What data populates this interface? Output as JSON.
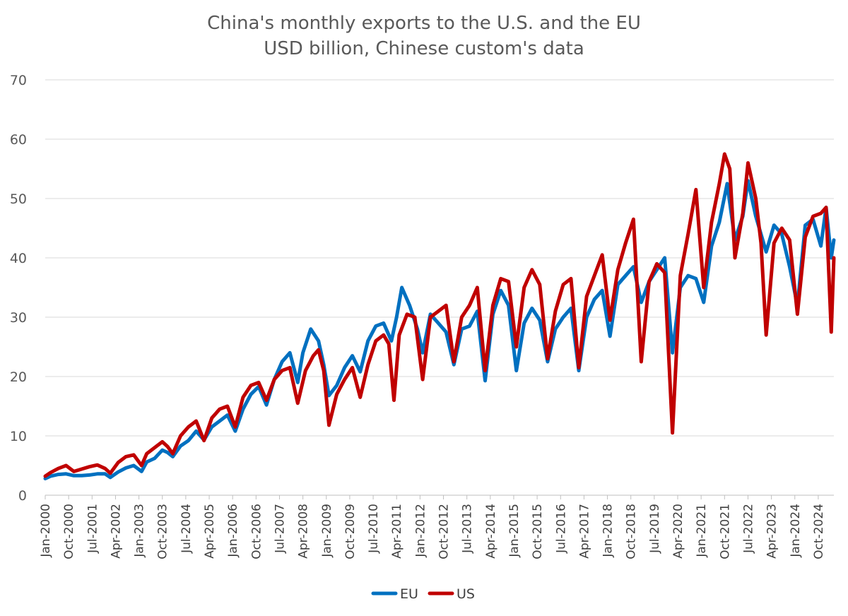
{
  "chart_data": {
    "type": "line",
    "title": "China's monthly exports to the U.S. and the EU",
    "subtitle": "USD billion, Chinese custom's data",
    "xlabel": "",
    "ylabel": "",
    "ylim": [
      0,
      70
    ],
    "yticks": [
      "0",
      "10",
      "20",
      "30",
      "40",
      "50",
      "60",
      "70"
    ],
    "grid": true,
    "legend": "bottom",
    "x_start": "Jan-2000",
    "x_end": "Apr-2025",
    "x_tick_labels": [
      "Jan-2000",
      "Oct-2000",
      "Jul-2001",
      "Apr-2002",
      "Jan-2003",
      "Oct-2003",
      "Jul-2004",
      "Apr-2005",
      "Jan-2006",
      "Oct-2006",
      "Jul-2007",
      "Apr-2008",
      "Jan-2009",
      "Oct-2009",
      "Jul-2010",
      "Apr-2011",
      "Jan-2012",
      "Oct-2012",
      "Jul-2013",
      "Apr-2014",
      "Jan-2015",
      "Oct-2015",
      "Jul-2016",
      "Apr-2017",
      "Jan-2018",
      "Oct-2018",
      "Jul-2019",
      "Apr-2020",
      "Jan-2021",
      "Oct-2021",
      "Jul-2022",
      "Apr-2023",
      "Jan-2024",
      "Oct-2024"
    ],
    "series": [
      {
        "name": "EU",
        "color": "#0070C0",
        "points": [
          [
            "Jan-2000",
            2.8
          ],
          [
            "Mar-2000",
            3.2
          ],
          [
            "Jun-2000",
            3.5
          ],
          [
            "Sep-2000",
            3.6
          ],
          [
            "Dec-2000",
            3.3
          ],
          [
            "Mar-2001",
            3.3
          ],
          [
            "Jun-2001",
            3.4
          ],
          [
            "Sep-2001",
            3.6
          ],
          [
            "Dec-2001",
            3.6
          ],
          [
            "Feb-2002",
            3.0
          ],
          [
            "May-2002",
            3.9
          ],
          [
            "Aug-2002",
            4.6
          ],
          [
            "Nov-2002",
            5.0
          ],
          [
            "Feb-2003",
            4.0
          ],
          [
            "Apr-2003",
            5.6
          ],
          [
            "Jul-2003",
            6.2
          ],
          [
            "Oct-2003",
            7.6
          ],
          [
            "Dec-2003",
            7.2
          ],
          [
            "Feb-2004",
            6.5
          ],
          [
            "May-2004",
            8.3
          ],
          [
            "Aug-2004",
            9.2
          ],
          [
            "Nov-2004",
            10.8
          ],
          [
            "Feb-2005",
            9.3
          ],
          [
            "May-2005",
            11.5
          ],
          [
            "Aug-2005",
            12.5
          ],
          [
            "Nov-2005",
            13.5
          ],
          [
            "Feb-2006",
            10.8
          ],
          [
            "May-2006",
            14.5
          ],
          [
            "Aug-2006",
            17.0
          ],
          [
            "Nov-2006",
            18.3
          ],
          [
            "Feb-2007",
            15.2
          ],
          [
            "May-2007",
            19.5
          ],
          [
            "Aug-2007",
            22.5
          ],
          [
            "Nov-2007",
            24.0
          ],
          [
            "Feb-2008",
            19.0
          ],
          [
            "Apr-2008",
            24.0
          ],
          [
            "Jul-2008",
            28.0
          ],
          [
            "Oct-2008",
            26.0
          ],
          [
            "Dec-2008",
            22.0
          ],
          [
            "Feb-2009",
            16.8
          ],
          [
            "May-2009",
            18.5
          ],
          [
            "Aug-2009",
            21.5
          ],
          [
            "Nov-2009",
            23.5
          ],
          [
            "Feb-2010",
            20.8
          ],
          [
            "May-2010",
            26.0
          ],
          [
            "Aug-2010",
            28.5
          ],
          [
            "Nov-2010",
            29.0
          ],
          [
            "Feb-2011",
            26.0
          ],
          [
            "Apr-2011",
            30.0
          ],
          [
            "Jun-2011",
            35.0
          ],
          [
            "Sep-2011",
            32.0
          ],
          [
            "Dec-2011",
            28.0
          ],
          [
            "Feb-2012",
            24.0
          ],
          [
            "May-2012",
            30.5
          ],
          [
            "Aug-2012",
            29.0
          ],
          [
            "Nov-2012",
            27.5
          ],
          [
            "Feb-2013",
            22.0
          ],
          [
            "May-2013",
            28.0
          ],
          [
            "Aug-2013",
            28.5
          ],
          [
            "Nov-2013",
            31.0
          ],
          [
            "Feb-2014",
            19.3
          ],
          [
            "May-2014",
            30.5
          ],
          [
            "Aug-2014",
            34.5
          ],
          [
            "Nov-2014",
            32.0
          ],
          [
            "Feb-2015",
            21.0
          ],
          [
            "May-2015",
            29.0
          ],
          [
            "Aug-2015",
            31.5
          ],
          [
            "Nov-2015",
            29.5
          ],
          [
            "Feb-2016",
            22.5
          ],
          [
            "May-2016",
            28.0
          ],
          [
            "Aug-2016",
            30.0
          ],
          [
            "Nov-2016",
            31.5
          ],
          [
            "Feb-2017",
            21.0
          ],
          [
            "May-2017",
            30.0
          ],
          [
            "Aug-2017",
            33.0
          ],
          [
            "Nov-2017",
            34.5
          ],
          [
            "Feb-2018",
            26.8
          ],
          [
            "May-2018",
            35.5
          ],
          [
            "Aug-2018",
            37.0
          ],
          [
            "Nov-2018",
            38.5
          ],
          [
            "Feb-2019",
            32.5
          ],
          [
            "May-2019",
            36.0
          ],
          [
            "Aug-2019",
            38.0
          ],
          [
            "Nov-2019",
            40.0
          ],
          [
            "Feb-2020",
            24.0
          ],
          [
            "May-2020",
            35.0
          ],
          [
            "Aug-2020",
            37.0
          ],
          [
            "Nov-2020",
            36.5
          ],
          [
            "Feb-2021",
            32.5
          ],
          [
            "May-2021",
            42.0
          ],
          [
            "Aug-2021",
            46.0
          ],
          [
            "Nov-2021",
            52.5
          ],
          [
            "Feb-2022",
            43.0
          ],
          [
            "May-2022",
            47.0
          ],
          [
            "Jul-2022",
            53.0
          ],
          [
            "Oct-2022",
            47.0
          ],
          [
            "Dec-2022",
            44.0
          ],
          [
            "Feb-2023",
            41.0
          ],
          [
            "May-2023",
            45.5
          ],
          [
            "Aug-2023",
            44.0
          ],
          [
            "Nov-2023",
            38.5
          ],
          [
            "Feb-2024",
            32.0
          ],
          [
            "May-2024",
            45.5
          ],
          [
            "Aug-2024",
            46.5
          ],
          [
            "Nov-2024",
            42.0
          ],
          [
            "Jan-2025",
            48.5
          ],
          [
            "Mar-2025",
            40.0
          ],
          [
            "Apr-2025",
            43.0
          ]
        ]
      },
      {
        "name": "US",
        "color": "#C00000",
        "points": [
          [
            "Jan-2000",
            3.2
          ],
          [
            "Mar-2000",
            3.8
          ],
          [
            "Jun-2000",
            4.5
          ],
          [
            "Sep-2000",
            5.0
          ],
          [
            "Dec-2000",
            4.0
          ],
          [
            "Mar-2001",
            4.4
          ],
          [
            "Jun-2001",
            4.8
          ],
          [
            "Sep-2001",
            5.1
          ],
          [
            "Dec-2001",
            4.5
          ],
          [
            "Feb-2002",
            3.7
          ],
          [
            "May-2002",
            5.5
          ],
          [
            "Aug-2002",
            6.5
          ],
          [
            "Nov-2002",
            6.8
          ],
          [
            "Feb-2003",
            5.0
          ],
          [
            "Apr-2003",
            7.0
          ],
          [
            "Jul-2003",
            8.0
          ],
          [
            "Oct-2003",
            9.0
          ],
          [
            "Dec-2003",
            8.2
          ],
          [
            "Feb-2004",
            7.0
          ],
          [
            "May-2004",
            10.0
          ],
          [
            "Aug-2004",
            11.5
          ],
          [
            "Nov-2004",
            12.5
          ],
          [
            "Feb-2005",
            9.2
          ],
          [
            "May-2005",
            13.0
          ],
          [
            "Aug-2005",
            14.5
          ],
          [
            "Nov-2005",
            15.0
          ],
          [
            "Feb-2006",
            11.5
          ],
          [
            "May-2006",
            16.5
          ],
          [
            "Aug-2006",
            18.5
          ],
          [
            "Nov-2006",
            19.0
          ],
          [
            "Feb-2007",
            16.0
          ],
          [
            "May-2007",
            19.5
          ],
          [
            "Aug-2007",
            21.0
          ],
          [
            "Nov-2007",
            21.5
          ],
          [
            "Feb-2008",
            15.5
          ],
          [
            "May-2008",
            21.0
          ],
          [
            "Aug-2008",
            23.5
          ],
          [
            "Oct-2008",
            24.5
          ],
          [
            "Dec-2008",
            21.0
          ],
          [
            "Feb-2009",
            11.8
          ],
          [
            "May-2009",
            17.0
          ],
          [
            "Aug-2009",
            19.5
          ],
          [
            "Nov-2009",
            21.5
          ],
          [
            "Feb-2010",
            16.5
          ],
          [
            "May-2010",
            22.0
          ],
          [
            "Aug-2010",
            26.0
          ],
          [
            "Nov-2010",
            27.0
          ],
          [
            "Jan-2011",
            25.5
          ],
          [
            "Mar-2011",
            16.0
          ],
          [
            "May-2011",
            27.0
          ],
          [
            "Aug-2011",
            30.5
          ],
          [
            "Nov-2011",
            30.0
          ],
          [
            "Feb-2012",
            19.5
          ],
          [
            "May-2012",
            30.0
          ],
          [
            "Aug-2012",
            31.0
          ],
          [
            "Nov-2012",
            32.0
          ],
          [
            "Feb-2013",
            22.5
          ],
          [
            "May-2013",
            30.0
          ],
          [
            "Aug-2013",
            32.0
          ],
          [
            "Nov-2013",
            35.0
          ],
          [
            "Feb-2014",
            21.0
          ],
          [
            "May-2014",
            32.0
          ],
          [
            "Aug-2014",
            36.5
          ],
          [
            "Nov-2014",
            36.0
          ],
          [
            "Feb-2015",
            25.0
          ],
          [
            "May-2015",
            35.0
          ],
          [
            "Aug-2015",
            38.0
          ],
          [
            "Nov-2015",
            35.5
          ],
          [
            "Feb-2016",
            23.0
          ],
          [
            "May-2016",
            31.0
          ],
          [
            "Aug-2016",
            35.5
          ],
          [
            "Nov-2016",
            36.5
          ],
          [
            "Feb-2017",
            21.5
          ],
          [
            "May-2017",
            33.5
          ],
          [
            "Aug-2017",
            37.0
          ],
          [
            "Nov-2017",
            40.5
          ],
          [
            "Feb-2018",
            29.5
          ],
          [
            "May-2018",
            38.0
          ],
          [
            "Aug-2018",
            42.5
          ],
          [
            "Nov-2018",
            46.5
          ],
          [
            "Feb-2019",
            22.5
          ],
          [
            "May-2019",
            36.0
          ],
          [
            "Aug-2019",
            39.0
          ],
          [
            "Nov-2019",
            37.5
          ],
          [
            "Feb-2020",
            10.5
          ],
          [
            "May-2020",
            37.0
          ],
          [
            "Aug-2020",
            44.0
          ],
          [
            "Nov-2020",
            51.5
          ],
          [
            "Feb-2021",
            35.0
          ],
          [
            "May-2021",
            46.0
          ],
          [
            "Aug-2021",
            52.5
          ],
          [
            "Oct-2021",
            57.5
          ],
          [
            "Dec-2021",
            55.0
          ],
          [
            "Feb-2022",
            40.0
          ],
          [
            "May-2022",
            47.5
          ],
          [
            "Jul-2022",
            56.0
          ],
          [
            "Oct-2022",
            50.0
          ],
          [
            "Dec-2022",
            42.5
          ],
          [
            "Feb-2023",
            27.0
          ],
          [
            "May-2023",
            42.5
          ],
          [
            "Aug-2023",
            45.0
          ],
          [
            "Nov-2023",
            43.0
          ],
          [
            "Feb-2024",
            30.5
          ],
          [
            "May-2024",
            43.5
          ],
          [
            "Aug-2024",
            47.0
          ],
          [
            "Nov-2024",
            47.5
          ],
          [
            "Jan-2025",
            48.5
          ],
          [
            "Mar-2025",
            27.5
          ],
          [
            "Apr-2025",
            40.0
          ]
        ]
      }
    ]
  }
}
